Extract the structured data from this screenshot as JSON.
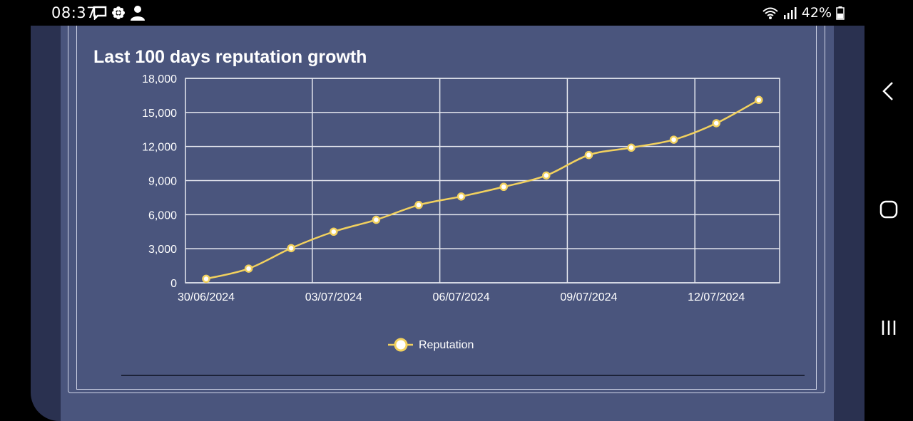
{
  "status_bar": {
    "time": "08:37",
    "battery": "42%",
    "left_icons": [
      "message-icon",
      "flower-icon",
      "person-icon"
    ],
    "right_icons": [
      "wifi-icon",
      "signal-icon",
      "battery-icon"
    ]
  },
  "nav_bar": {
    "buttons": [
      "back-icon",
      "home-icon",
      "recents-icon"
    ]
  },
  "colors": {
    "panel_bg": "#4a557d",
    "frame_bg": "#2a3150",
    "line": "#f2d15e",
    "grid": "#e6e8f0",
    "text": "#ffffff"
  },
  "chart_data": {
    "type": "line",
    "title": "Last 100 days reputation growth",
    "xlabel": "",
    "ylabel": "",
    "x": [
      "30/06/2024",
      "01/07/2024",
      "02/07/2024",
      "03/07/2024",
      "04/07/2024",
      "05/07/2024",
      "06/07/2024",
      "07/07/2024",
      "08/07/2024",
      "09/07/2024",
      "10/07/2024",
      "11/07/2024",
      "12/07/2024",
      "13/07/2024"
    ],
    "x_tick_labels": [
      "30/06/2024",
      "03/07/2024",
      "06/07/2024",
      "09/07/2024",
      "12/07/2024"
    ],
    "y_ticks": [
      "0",
      "3,000",
      "6,000",
      "9,000",
      "12,000",
      "15,000",
      "18,000"
    ],
    "ylim": [
      0,
      18000
    ],
    "grid": true,
    "legend_position": "bottom",
    "series": [
      {
        "name": "Reputation",
        "values": [
          350,
          1250,
          3050,
          4500,
          5550,
          6850,
          7600,
          8450,
          9450,
          11250,
          11900,
          12600,
          14050,
          16100
        ]
      }
    ]
  }
}
